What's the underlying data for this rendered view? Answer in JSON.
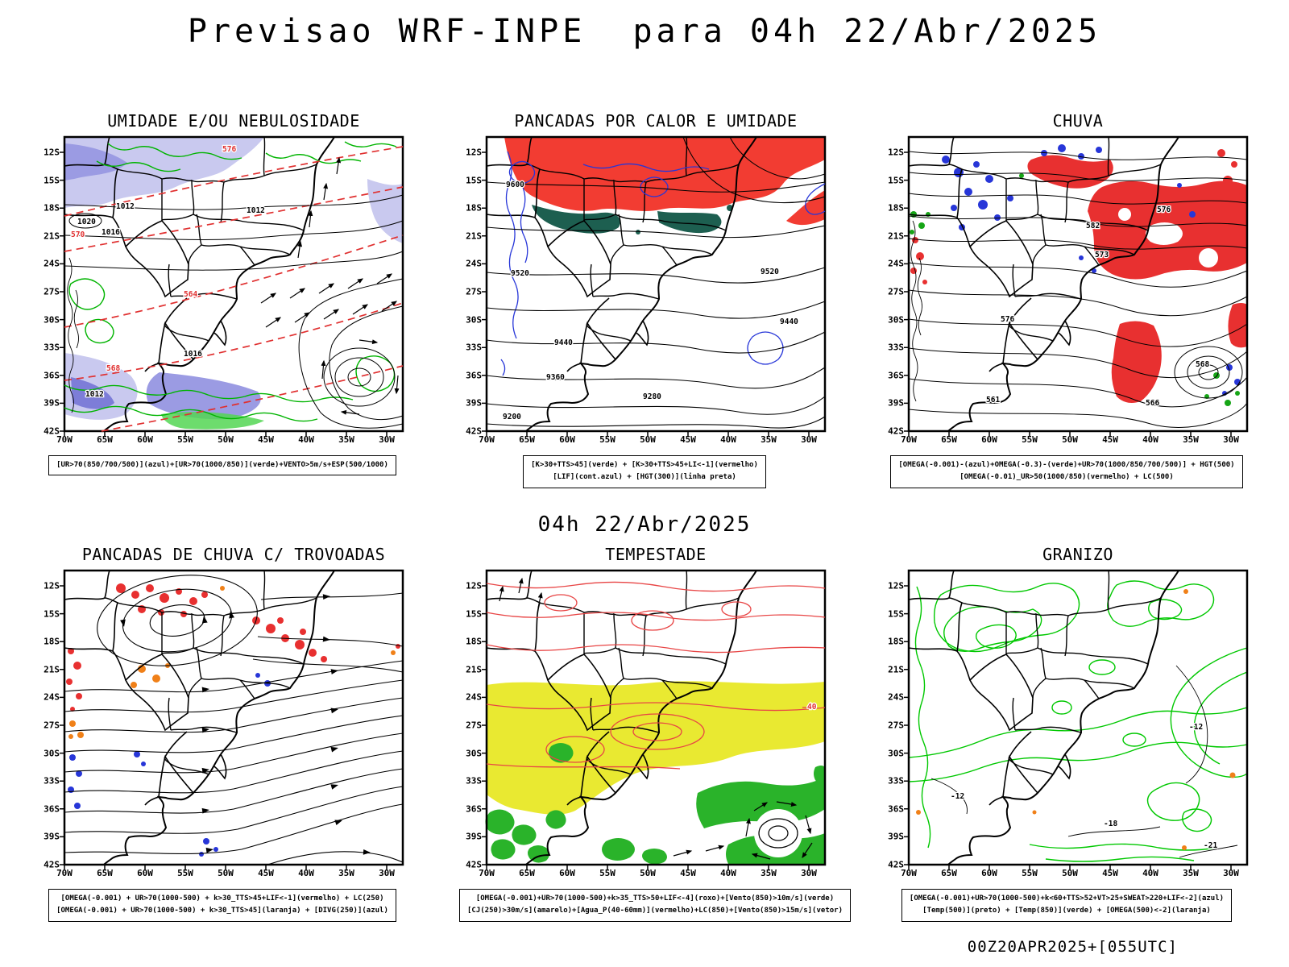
{
  "page": {
    "title": "Previsao WRF-INPE  para 04h 22/Abr/2025",
    "mid_label": "04h 22/Abr/2025",
    "footer": "00Z20APR2025+[055UTC]"
  },
  "axes": {
    "lat_ticks": [
      "12S",
      "15S",
      "18S",
      "21S",
      "24S",
      "27S",
      "30S",
      "33S",
      "36S",
      "39S",
      "42S"
    ],
    "lon_ticks": [
      "70W",
      "65W",
      "60W",
      "55W",
      "50W",
      "45W",
      "40W",
      "35W",
      "30W"
    ]
  },
  "colors": {
    "shade_light_blue": "#c9c9ef",
    "shade_mid_blue": "#9b9be3",
    "shade_deep_blue": "#7d7dd8",
    "green_contour": "#00b400",
    "green_fill": "#2ab32a",
    "red_fill": "#f23c32",
    "red_contour": "#e03030",
    "orange": "#f08018",
    "yellow_fill": "#e9e931",
    "teal_fill": "#1d5f50",
    "blue_contour": "#2736d8"
  },
  "panels": [
    {
      "title": "UMIDADE E/OU NEBULOSIDADE",
      "caption_lines": [
        "[UR>70(850/700/500)](azul)+[UR>70(1000/850)](verde)+VENTO>5m/s+ESP(500/1000)"
      ],
      "contour_labels": [
        "570",
        "576",
        "564",
        "568",
        "1020",
        "1016",
        "1012",
        "1012",
        "1016",
        "1012"
      ]
    },
    {
      "title": "PANCADAS POR CALOR E UMIDADE",
      "caption_lines": [
        "[K>30+TTS>45](verde) + [K>30+TTS>45+LI<-1](vermelho)",
        "[LIF](cont.azul) + [HGT(300)](linha preta)"
      ],
      "contour_labels": [
        "9600",
        "9520",
        "9440",
        "9360",
        "9280",
        "9200",
        "9520",
        "9440"
      ]
    },
    {
      "title": "CHUVA",
      "caption_lines": [
        "[OMEGA(-0.001)-(azul)+OMEGA(-0.3)-(verde)+UR>70(1000/850/700/500)] + HGT(500)",
        "[OMEGA(-0.01)_UR>50(1000/850)(vermelho) + LC(500)"
      ],
      "contour_labels": [
        "582",
        "576",
        "573",
        "576",
        "561",
        "566",
        "568"
      ]
    },
    {
      "title": "PANCADAS DE CHUVA C/ TROVOADAS",
      "caption_lines": [
        "[OMEGA(-0.001) + UR>70(1000-500) + k>30_TTS>45+LIF<-1](vermelho) + LC(250)",
        "[OMEGA(-0.001) + UR>70(1000-500) + k>30_TTS>45](laranja) + [DIVG(250)](azul)"
      ],
      "contour_labels": []
    },
    {
      "title": "TEMPESTADE",
      "caption_lines": [
        "[OMEGA(-0.001)+UR>70(1000-500)+k>35_TTS>50+LIF<-4](roxo)+[Vento(850)>10m/s](verde)",
        "[CJ(250)>30m/s](amarelo)+[Agua_P(40-60mm)](vermelho)+LC(850)+[Vento(850)>15m/s](vetor)"
      ],
      "contour_labels": [
        "40"
      ]
    },
    {
      "title": "GRANIZO",
      "caption_lines": [
        "[OMEGA(-0.001)+UR>70(1000-500)+k<60+TTS>52+VT>25+SWEAT>220+LIF<-2](azul)",
        "[Temp(500)](preto) + [Temp(850)](verde) + [OMEGA(500)<-2](laranja)"
      ],
      "contour_labels": [
        "-12",
        "-12",
        "-18",
        "-21"
      ]
    }
  ]
}
